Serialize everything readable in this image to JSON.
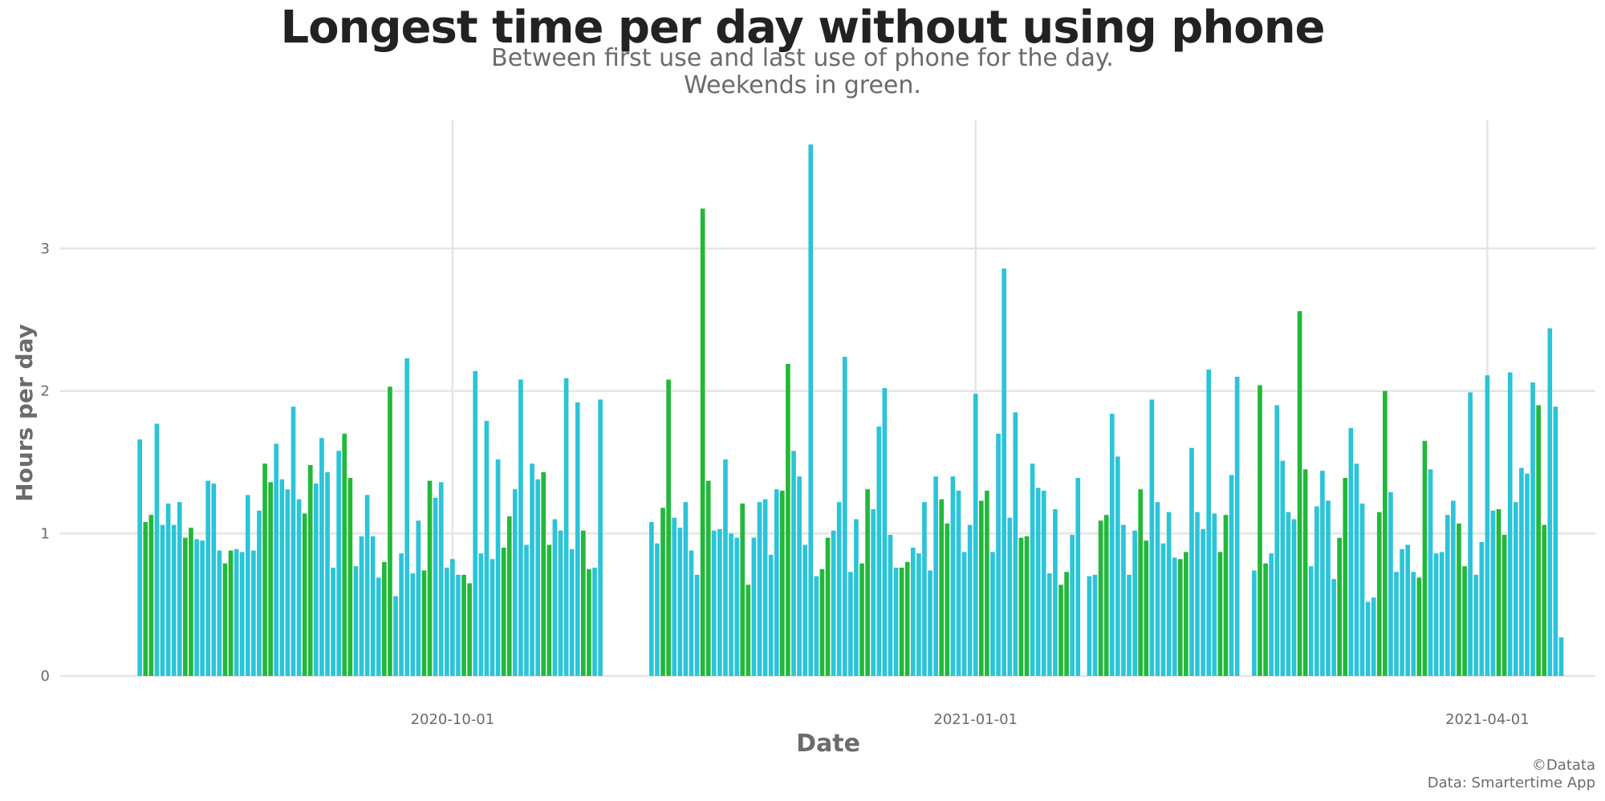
{
  "header": {
    "title": "Longest time per day without using phone",
    "subtitle_line1": "Between first use and last use of phone for the day.",
    "subtitle_line2": "Weekends in green."
  },
  "caption": {
    "line1": "©Datata",
    "line2": "Data: Smartertime App"
  },
  "colors": {
    "weekday": "#2BC4D8",
    "weekend": "#22B83A",
    "grid": "#e5e5e5",
    "axis_text": "#6b6b6b"
  },
  "chart_data": {
    "type": "bar",
    "title": "Longest time per day without using phone",
    "subtitle": "Between first use and last use of phone for the day. Weekends in green.",
    "xlabel": "Date",
    "ylabel": "Hours per day",
    "ylim": [
      0,
      3.9
    ],
    "y_ticks": [
      0,
      1,
      2,
      3
    ],
    "x_ticks": [
      "2020-10-01",
      "2021-01-01",
      "2021-04-01"
    ],
    "x_range": [
      "2020-07-24",
      "2021-04-20"
    ],
    "grid": true,
    "legend": "none",
    "series": [
      {
        "start_date": "2020-08-07",
        "values": [
          1.66,
          1.08,
          1.13,
          1.77,
          1.06,
          1.21,
          1.06,
          1.22,
          0.97,
          1.04,
          0.96,
          0.95,
          1.37,
          1.35,
          0.88,
          0.79,
          0.88,
          0.89,
          0.87,
          1.27,
          0.88,
          1.16,
          1.49,
          1.36,
          1.63,
          1.38,
          1.31,
          1.89,
          1.24,
          1.14,
          1.48,
          1.35,
          1.67,
          1.43,
          0.76,
          1.58,
          1.7,
          1.39,
          0.77,
          0.98,
          1.27,
          0.98,
          0.69,
          0.8,
          2.03,
          0.56,
          0.86,
          2.23,
          0.72,
          1.09,
          0.74,
          1.37,
          1.25,
          1.36,
          0.76,
          0.82,
          0.71,
          0.71,
          0.65,
          2.14,
          0.86,
          1.79,
          0.82,
          1.52,
          0.9,
          1.12,
          1.31,
          2.08,
          0.92,
          1.49,
          1.38,
          1.43,
          0.92,
          1.1,
          1.02,
          2.09,
          0.89,
          1.92,
          1.02,
          0.75,
          0.76,
          1.94
        ]
      },
      {
        "start_date": "2020-11-05",
        "values": [
          1.08,
          0.93,
          1.18,
          2.08,
          1.11,
          1.04,
          1.22,
          0.88,
          0.71,
          3.28,
          1.37,
          1.02,
          1.03,
          1.52,
          1.0,
          0.97,
          1.21,
          0.64,
          0.97,
          1.22,
          1.24,
          0.85,
          1.31,
          1.3,
          2.19,
          1.58,
          1.4,
          0.92,
          3.73,
          0.7,
          0.75,
          0.97,
          1.02,
          1.22,
          2.24,
          0.73,
          1.1,
          0.79,
          1.31,
          1.17,
          1.75,
          2.02,
          0.99,
          0.76,
          0.76,
          0.8,
          0.9,
          0.86,
          1.22,
          0.74,
          1.4,
          1.24,
          1.07,
          1.4,
          1.3,
          0.87,
          1.06,
          1.98,
          1.23,
          1.3,
          0.87,
          1.7,
          2.86,
          1.11,
          1.85,
          0.97,
          0.98,
          1.49,
          1.32,
          1.3,
          0.72,
          1.17,
          0.64,
          0.73,
          0.99,
          1.39
        ]
      },
      {
        "start_date": "2021-01-21",
        "values": [
          0.7,
          0.71,
          1.09,
          1.13,
          1.84,
          1.54,
          1.06,
          0.71,
          1.02,
          1.31,
          0.95,
          1.94,
          1.22,
          0.93,
          1.15,
          0.83,
          0.82,
          0.87,
          1.6,
          1.15,
          1.03,
          2.15,
          1.14,
          0.87,
          1.13,
          1.41,
          2.1
        ]
      },
      {
        "start_date": "2021-02-19",
        "values": [
          0.74,
          2.04,
          0.79,
          0.86,
          1.9,
          1.51,
          1.15,
          1.1,
          2.56,
          1.45,
          0.77,
          1.19,
          1.44,
          1.23,
          0.68,
          0.97,
          1.39,
          1.74,
          1.49,
          1.21,
          0.52,
          0.55,
          1.15,
          2.0,
          1.29,
          0.73,
          0.89,
          0.92,
          0.73,
          0.69,
          1.65,
          1.45,
          0.86,
          0.87,
          1.13,
          1.23,
          1.07,
          0.77,
          1.99,
          0.71,
          0.94,
          2.11,
          1.16,
          1.17,
          0.99,
          2.13,
          1.22,
          1.46,
          1.42,
          2.06,
          1.9,
          1.06,
          2.44,
          1.89,
          0.27
        ]
      }
    ]
  }
}
